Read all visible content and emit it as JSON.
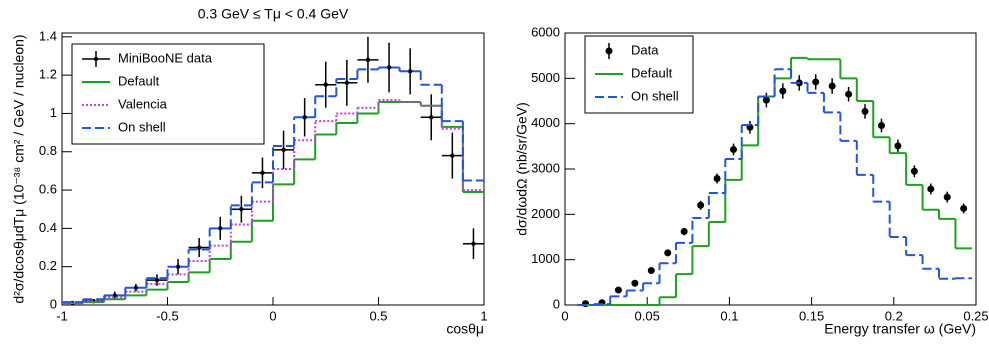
{
  "chart_data": [
    {
      "type": "histogram",
      "title": "0.3 GeV ≤ Tμ < 0.4 GeV",
      "x_label": "cosθμ",
      "y_label": "d²σ/dcosθμdTμ (10⁻³⁸ cm² / GeV / nucleon)",
      "bins": [
        -1,
        -0.9,
        -0.8,
        -0.7,
        -0.6,
        -0.5,
        -0.4,
        -0.3,
        -0.2,
        -0.1,
        0,
        0.1,
        0.2,
        0.3,
        0.4,
        0.5,
        0.6,
        0.7,
        0.8,
        0.9,
        1
      ],
      "xlim": [
        -1,
        1
      ],
      "xticks": [
        -1,
        -0.5,
        0,
        0.5,
        1
      ],
      "ylim": [
        0,
        1.42
      ],
      "yticks": [
        0,
        0.2,
        0.4,
        0.6,
        0.8,
        1,
        1.2,
        1.4
      ],
      "legend": "upper left",
      "series": [
        {
          "name": "MiniBooNE data",
          "color": "#000000",
          "style": "cross",
          "values": [
            0.01,
            0.02,
            0.05,
            0.09,
            0.13,
            0.2,
            0.3,
            0.4,
            0.5,
            0.69,
            0.81,
            0.98,
            1.15,
            1.16,
            1.28,
            1.24,
            1.22,
            0.98,
            0.78,
            0.32
          ],
          "errors": [
            0.01,
            0.01,
            0.02,
            0.02,
            0.03,
            0.04,
            0.05,
            0.06,
            0.07,
            0.08,
            0.1,
            0.1,
            0.12,
            0.12,
            0.12,
            0.13,
            0.12,
            0.12,
            0.12,
            0.08
          ]
        },
        {
          "name": "Default",
          "color": "#1fa01f",
          "style": "solid",
          "values": [
            0.01,
            0.015,
            0.03,
            0.05,
            0.08,
            0.12,
            0.17,
            0.24,
            0.33,
            0.44,
            0.63,
            0.76,
            0.89,
            0.95,
            1.0,
            1.06,
            1.06,
            1.04,
            0.93,
            0.59
          ]
        },
        {
          "name": "Valencia",
          "color": "#c040e0",
          "style": "dotted",
          "values": [
            0.01,
            0.02,
            0.04,
            0.07,
            0.11,
            0.16,
            0.23,
            0.31,
            0.42,
            0.54,
            0.71,
            0.86,
            0.96,
            1.0,
            1.03,
            1.07,
            1.06,
            1.04,
            0.92,
            0.6
          ]
        },
        {
          "name": "On shell",
          "color": "#2255dd",
          "style": "dashed",
          "values": [
            0.015,
            0.03,
            0.05,
            0.09,
            0.14,
            0.2,
            0.29,
            0.4,
            0.52,
            0.64,
            0.83,
            0.98,
            1.09,
            1.18,
            1.23,
            1.24,
            1.22,
            1.15,
            0.96,
            0.65
          ]
        }
      ]
    },
    {
      "type": "histogram",
      "x_label": "Energy transfer ω (GeV)",
      "y_label": "dσ/dωdΩ (nb/sr/GeV)",
      "bins": [
        0.0075,
        0.0175,
        0.0275,
        0.0375,
        0.0475,
        0.0575,
        0.0675,
        0.0775,
        0.0875,
        0.0975,
        0.1075,
        0.1175,
        0.1275,
        0.1375,
        0.1475,
        0.1575,
        0.1675,
        0.1775,
        0.1875,
        0.1975,
        0.2075,
        0.2175,
        0.2275,
        0.2375,
        0.2475
      ],
      "xlim": [
        0,
        0.25
      ],
      "xticks": [
        0,
        0.05,
        0.1,
        0.15,
        0.2,
        0.25
      ],
      "ylim": [
        0,
        6000
      ],
      "yticks": [
        0,
        1000,
        2000,
        3000,
        4000,
        5000,
        6000
      ],
      "legend": "upper left",
      "series": [
        {
          "name": "Data",
          "color": "#000000",
          "style": "circle",
          "values": [
            30,
            50,
            330,
            480,
            760,
            1150,
            1620,
            2200,
            2790,
            3430,
            3920,
            4520,
            4720,
            4900,
            4920,
            4830,
            4650,
            4270,
            3960,
            3510,
            2950,
            2560,
            2380,
            2130
          ],
          "errors": [
            20,
            20,
            40,
            50,
            60,
            70,
            80,
            100,
            110,
            130,
            140,
            160,
            170,
            170,
            170,
            170,
            160,
            160,
            150,
            140,
            130,
            120,
            120,
            110
          ]
        },
        {
          "name": "Default",
          "color": "#1fa01f",
          "style": "solid",
          "values": [
            0,
            0,
            0,
            0,
            0,
            170,
            680,
            1300,
            1830,
            2760,
            3520,
            4600,
            5000,
            5450,
            5420,
            5420,
            5000,
            4500,
            3700,
            3350,
            2650,
            2100,
            1900,
            1250
          ]
        },
        {
          "name": "On shell",
          "color": "#2255dd",
          "style": "dashed",
          "values": [
            0,
            20,
            190,
            320,
            480,
            920,
            1370,
            1920,
            2470,
            3220,
            3970,
            4600,
            5200,
            4900,
            4680,
            4250,
            3620,
            2870,
            2280,
            1500,
            1100,
            800,
            580,
            590
          ]
        }
      ]
    }
  ]
}
